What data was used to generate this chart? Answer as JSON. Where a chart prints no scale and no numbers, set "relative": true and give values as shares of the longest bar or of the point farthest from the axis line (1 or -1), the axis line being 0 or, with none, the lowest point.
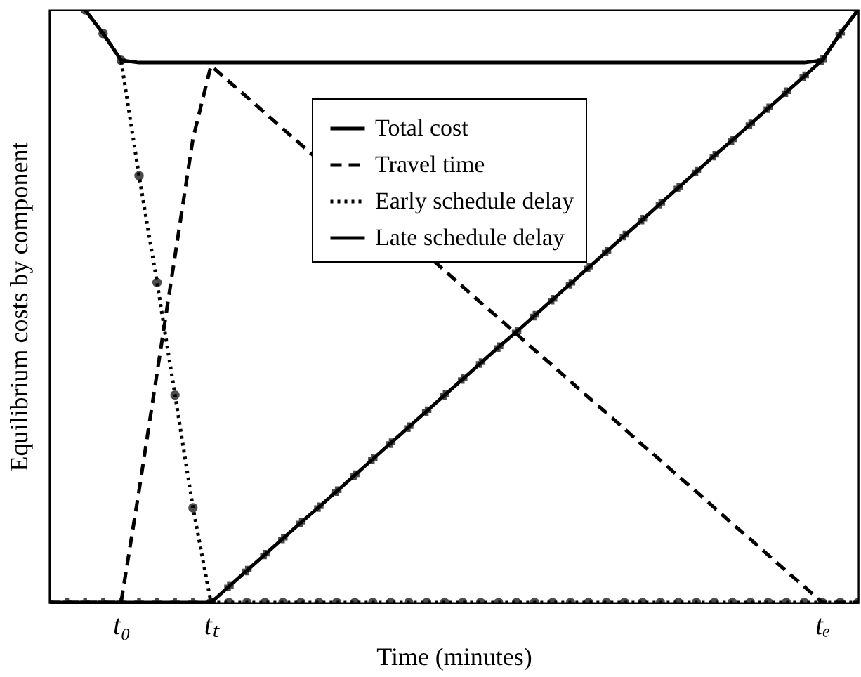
{
  "chart_data": {
    "type": "line",
    "relative": true,
    "xlabel": "Time (minutes)",
    "ylabel": "Equilibrium costs by component",
    "categories": [
      null,
      null,
      null,
      null,
      "t₀",
      null,
      null,
      null,
      null,
      "tₜ",
      null,
      null,
      null,
      null,
      null,
      null,
      null,
      null,
      null,
      null,
      null,
      null,
      null,
      null,
      null,
      null,
      null,
      null,
      null,
      null,
      null,
      null,
      null,
      null,
      null,
      null,
      null,
      null,
      null,
      null,
      null,
      null,
      null,
      "tₑ",
      null,
      null
    ],
    "tick_labels": "x",
    "legend": "top",
    "series": [
      {
        "name": "Total cost",
        "color": "#000000",
        "line_style": "solid",
        "marker": "none",
        "values": [
          null,
          null,
          1,
          0.96,
          0.915,
          0.911,
          0.911,
          0.911,
          0.911,
          0.911,
          0.911,
          0.911,
          0.911,
          0.911,
          0.911,
          0.911,
          0.911,
          0.911,
          0.911,
          0.911,
          0.911,
          0.911,
          0.911,
          0.911,
          0.911,
          0.911,
          0.911,
          0.911,
          0.911,
          0.911,
          0.911,
          0.911,
          0.911,
          0.911,
          0.911,
          0.911,
          0.911,
          0.911,
          0.911,
          0.911,
          0.911,
          0.911,
          0.911,
          0.915,
          0.96,
          1
        ]
      },
      {
        "name": "Travel time",
        "color": "#000000",
        "line_style": "dashed",
        "marker": "none",
        "values": [
          0,
          0,
          0,
          0,
          0,
          0.189,
          0.387,
          0.585,
          0.783,
          0.906,
          0.879,
          0.853,
          0.826,
          null,
          null,
          null,
          null,
          null,
          null,
          null,
          null,
          null,
          0.56,
          0.533,
          0.506,
          0.48,
          0.453,
          0.426,
          0.4,
          0.373,
          0.346,
          0.32,
          0.293,
          0.266,
          0.24,
          0.213,
          0.187,
          0.16,
          0.133,
          0.107,
          0.08,
          0.053,
          0.027,
          0,
          0,
          0
        ]
      },
      {
        "name": "Early schedule delay",
        "color": "#000000",
        "line_style": "dotted",
        "marker": "circle",
        "values": [
          null,
          null,
          1,
          0.96,
          0.915,
          0.72,
          0.54,
          0.35,
          0.16,
          0,
          0,
          0,
          0,
          0,
          0,
          0,
          0,
          0,
          0,
          0,
          0,
          0,
          0,
          0,
          0,
          0,
          0,
          0,
          0,
          0,
          0,
          0,
          0,
          0,
          0,
          0,
          0,
          0,
          0,
          0,
          0,
          0,
          0,
          0,
          0,
          0
        ]
      },
      {
        "name": "Late schedule delay",
        "color": "#000000",
        "line_style": "solid",
        "marker": "cross",
        "values": [
          0,
          0,
          0,
          0,
          0,
          0,
          0,
          0,
          0,
          0,
          0.027,
          0.054,
          0.081,
          0.108,
          0.135,
          0.161,
          0.188,
          0.215,
          0.242,
          0.269,
          0.296,
          0.323,
          0.35,
          0.377,
          0.404,
          0.431,
          0.457,
          0.484,
          0.511,
          0.538,
          0.565,
          0.592,
          0.619,
          0.646,
          0.673,
          0.7,
          0.727,
          0.754,
          0.78,
          0.807,
          0.834,
          0.861,
          0.888,
          0.915,
          0.96,
          1
        ]
      }
    ]
  }
}
